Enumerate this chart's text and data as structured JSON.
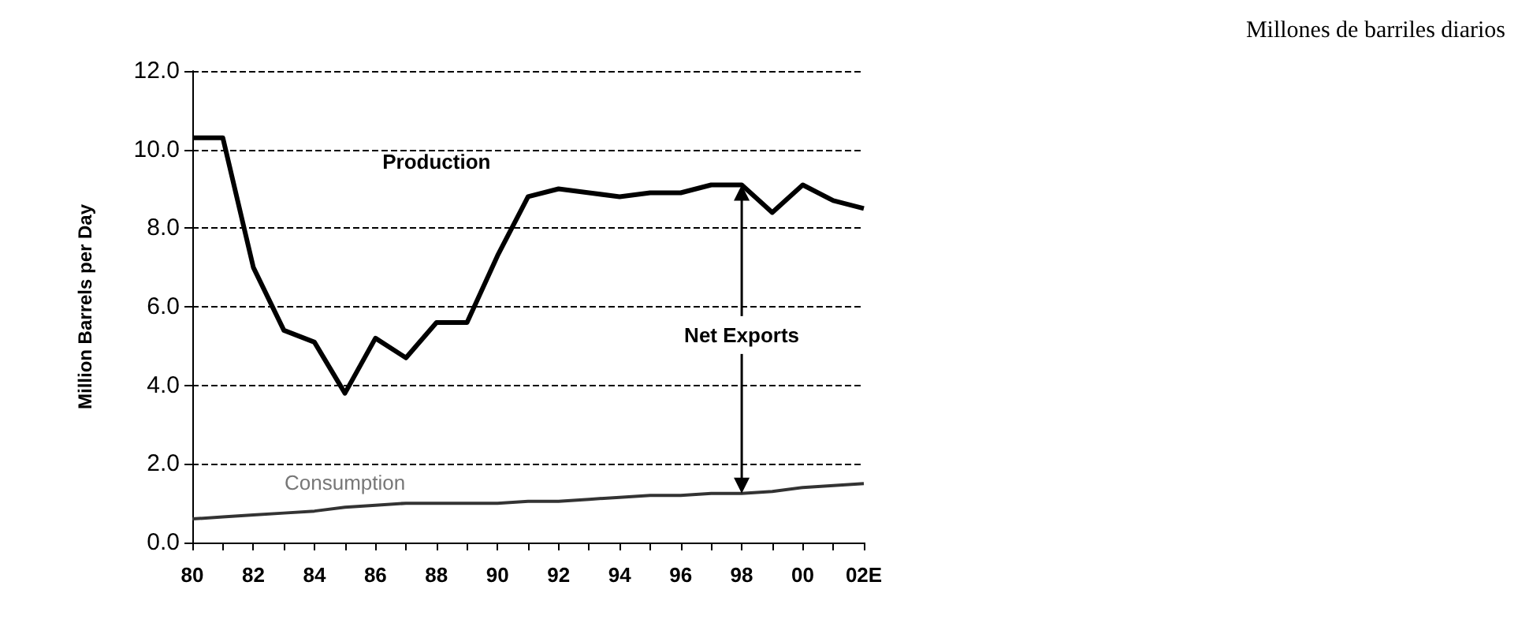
{
  "chart_data": {
    "type": "line",
    "ylabel": "Million Barrels per Day",
    "categories": [
      "80",
      null,
      "82",
      null,
      "84",
      null,
      "86",
      null,
      "88",
      null,
      "90",
      null,
      "92",
      null,
      "94",
      null,
      "96",
      null,
      "98",
      null,
      "00",
      null,
      "02E"
    ],
    "series": [
      {
        "name": "Production",
        "color": "#000000",
        "values": [
          10.3,
          10.3,
          7.0,
          5.4,
          5.1,
          3.8,
          5.2,
          4.7,
          5.6,
          5.6,
          7.3,
          8.8,
          9.0,
          8.9,
          8.8,
          8.9,
          8.9,
          9.1,
          9.1,
          8.4,
          9.1,
          8.7,
          8.5
        ]
      },
      {
        "name": "Consumption",
        "color": "#333333",
        "values": [
          0.6,
          0.65,
          0.7,
          0.75,
          0.8,
          0.9,
          0.95,
          1.0,
          1.0,
          1.0,
          1.0,
          1.05,
          1.05,
          1.1,
          1.15,
          1.2,
          1.2,
          1.25,
          1.25,
          1.3,
          1.4,
          1.45,
          1.5
        ]
      }
    ],
    "ylim": [
      0,
      12
    ],
    "yticks": [
      {
        "value": 0,
        "label": "0.0"
      },
      {
        "value": 2,
        "label": "2.0"
      },
      {
        "value": 4,
        "label": "4.0"
      },
      {
        "value": 6,
        "label": "6.0"
      },
      {
        "value": 8,
        "label": "8.0"
      },
      {
        "value": 10,
        "label": "10.0"
      },
      {
        "value": 12,
        "label": "12.0"
      }
    ],
    "grid": "y",
    "legend": false,
    "marker": "none",
    "line_style": "solid",
    "annotations": [
      "Millones de barriles diarios",
      "Net Exports"
    ]
  }
}
